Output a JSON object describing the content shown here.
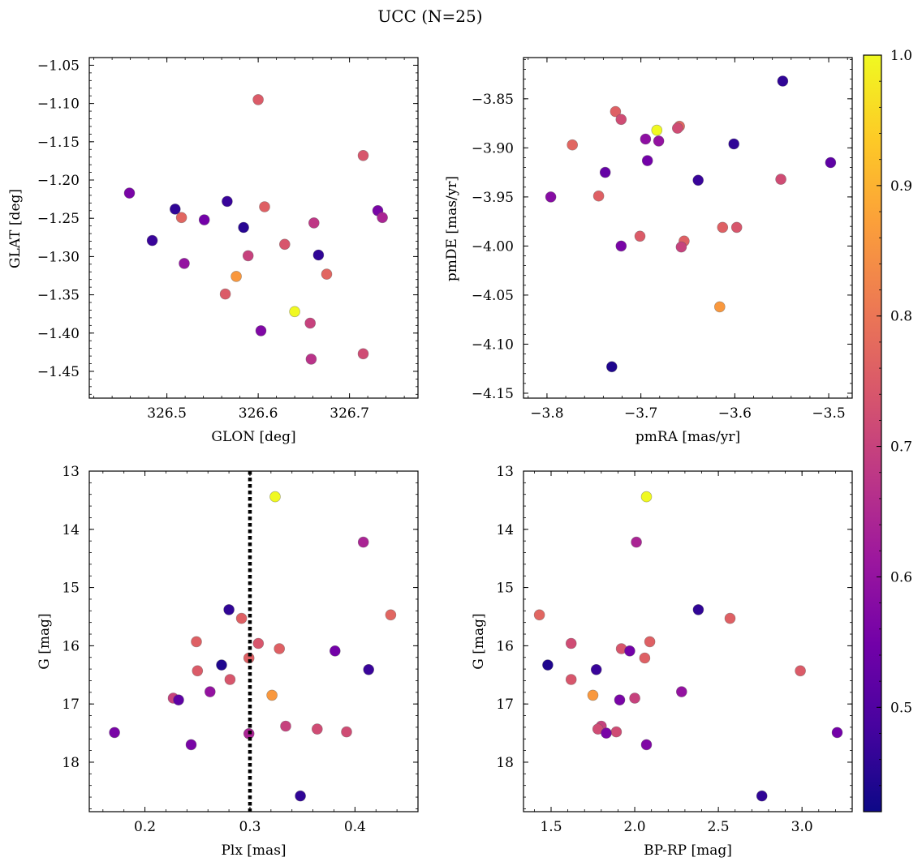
{
  "figure": {
    "title": "UCC (N=25)"
  },
  "colors": {
    "cmap": [
      "#0d0887",
      "#46039f",
      "#7201a8",
      "#9c179e",
      "#bd3786",
      "#d8576b",
      "#ed7953",
      "#fb9f3a",
      "#fdca26",
      "#f0f921"
    ],
    "threshold_line": "#000000"
  },
  "colorbar": {
    "min": 0.42,
    "max": 1.0,
    "ticks": [
      "0.5",
      "0.6",
      "0.7",
      "0.8",
      "0.9",
      "1.0"
    ],
    "tick_values": [
      0.5,
      0.6,
      0.7,
      0.8,
      0.9,
      1.0
    ]
  },
  "chart_data": [
    {
      "type": "scatter",
      "id": "lonlat",
      "xlabel": "GLON [deg]",
      "ylabel": "GLAT [deg]",
      "xlim": [
        326.415,
        326.775
      ],
      "ylim": [
        -1.485,
        -1.04
      ],
      "xticks": [
        326.5,
        326.6,
        326.7
      ],
      "xtick_labels": [
        "326.5",
        "326.6",
        "326.7"
      ],
      "yticks": [
        -1.05,
        -1.1,
        -1.15,
        -1.2,
        -1.25,
        -1.3,
        -1.35,
        -1.4,
        -1.45
      ],
      "ytick_labels": [
        "−1.05",
        "−1.10",
        "−1.15",
        "−1.20",
        "−1.25",
        "−1.30",
        "−1.35",
        "−1.40",
        "−1.45"
      ],
      "points": [
        {
          "x": 326.459,
          "y": -1.217,
          "c": 0.56
        },
        {
          "x": 326.484,
          "y": -1.279,
          "c": 0.47
        },
        {
          "x": 326.509,
          "y": -1.238,
          "c": 0.46
        },
        {
          "x": 326.516,
          "y": -1.249,
          "c": 0.77
        },
        {
          "x": 326.519,
          "y": -1.309,
          "c": 0.6
        },
        {
          "x": 326.541,
          "y": -1.252,
          "c": 0.55
        },
        {
          "x": 326.564,
          "y": -1.349,
          "c": 0.75
        },
        {
          "x": 326.566,
          "y": -1.228,
          "c": 0.47
        },
        {
          "x": 326.576,
          "y": -1.326,
          "c": 0.86
        },
        {
          "x": 326.584,
          "y": -1.262,
          "c": 0.45
        },
        {
          "x": 326.589,
          "y": -1.299,
          "c": 0.7
        },
        {
          "x": 326.6,
          "y": -1.095,
          "c": 0.75
        },
        {
          "x": 326.603,
          "y": -1.397,
          "c": 0.57
        },
        {
          "x": 326.607,
          "y": -1.235,
          "c": 0.76
        },
        {
          "x": 326.629,
          "y": -1.284,
          "c": 0.74
        },
        {
          "x": 326.64,
          "y": -1.372,
          "c": 1.0
        },
        {
          "x": 326.657,
          "y": -1.387,
          "c": 0.7
        },
        {
          "x": 326.658,
          "y": -1.434,
          "c": 0.67
        },
        {
          "x": 326.661,
          "y": -1.256,
          "c": 0.68
        },
        {
          "x": 326.666,
          "y": -1.298,
          "c": 0.46
        },
        {
          "x": 326.675,
          "y": -1.323,
          "c": 0.77
        },
        {
          "x": 326.715,
          "y": -1.168,
          "c": 0.74
        },
        {
          "x": 326.715,
          "y": -1.427,
          "c": 0.72
        },
        {
          "x": 326.731,
          "y": -1.24,
          "c": 0.56
        },
        {
          "x": 326.736,
          "y": -1.249,
          "c": 0.64
        }
      ]
    },
    {
      "type": "scatter",
      "id": "pm",
      "xlabel": "pmRA [mas/yr]",
      "ylabel": "pmDE [mas/yr]",
      "xlim": [
        -3.825,
        -3.475
      ],
      "ylim": [
        -4.155,
        -3.808
      ],
      "xticks": [
        -3.8,
        -3.7,
        -3.6,
        -3.5
      ],
      "xtick_labels": [
        "−3.8",
        "−3.7",
        "−3.6",
        "−3.5"
      ],
      "yticks": [
        -3.85,
        -3.9,
        -3.95,
        -4.0,
        -4.05,
        -4.1,
        -4.15
      ],
      "ytick_labels": [
        "−3.85",
        "−3.90",
        "−3.95",
        "−4.00",
        "−4.05",
        "−4.10",
        "−4.15"
      ],
      "points": [
        {
          "x": -3.549,
          "y": -3.832,
          "c": 0.46
        },
        {
          "x": -3.727,
          "y": -3.863,
          "c": 0.76
        },
        {
          "x": -3.721,
          "y": -3.871,
          "c": 0.72
        },
        {
          "x": -3.683,
          "y": -3.882,
          "c": 1.0
        },
        {
          "x": -3.659,
          "y": -3.878,
          "c": 0.77
        },
        {
          "x": -3.661,
          "y": -3.88,
          "c": 0.72
        },
        {
          "x": -3.695,
          "y": -3.891,
          "c": 0.59
        },
        {
          "x": -3.681,
          "y": -3.893,
          "c": 0.6
        },
        {
          "x": -3.773,
          "y": -3.897,
          "c": 0.77
        },
        {
          "x": -3.601,
          "y": -3.896,
          "c": 0.46
        },
        {
          "x": -3.693,
          "y": -3.913,
          "c": 0.55
        },
        {
          "x": -3.498,
          "y": -3.915,
          "c": 0.52
        },
        {
          "x": -3.738,
          "y": -3.925,
          "c": 0.53
        },
        {
          "x": -3.639,
          "y": -3.933,
          "c": 0.47
        },
        {
          "x": -3.551,
          "y": -3.932,
          "c": 0.72
        },
        {
          "x": -3.796,
          "y": -3.95,
          "c": 0.58
        },
        {
          "x": -3.745,
          "y": -3.949,
          "c": 0.76
        },
        {
          "x": -3.613,
          "y": -3.981,
          "c": 0.76
        },
        {
          "x": -3.598,
          "y": -3.981,
          "c": 0.74
        },
        {
          "x": -3.701,
          "y": -3.99,
          "c": 0.75
        },
        {
          "x": -3.654,
          "y": -3.995,
          "c": 0.76
        },
        {
          "x": -3.721,
          "y": -4.0,
          "c": 0.56
        },
        {
          "x": -3.657,
          "y": -4.001,
          "c": 0.7
        },
        {
          "x": -3.616,
          "y": -4.062,
          "c": 0.86
        },
        {
          "x": -3.731,
          "y": -4.123,
          "c": 0.44
        }
      ]
    },
    {
      "type": "scatter",
      "id": "plx",
      "xlabel": "Plx [mas]",
      "ylabel": "G [mag]",
      "xlim": [
        0.147,
        0.46
      ],
      "ylim": [
        18.85,
        13.0
      ],
      "y_inverted": true,
      "xticks": [
        0.2,
        0.3,
        0.4
      ],
      "xtick_labels": [
        "0.2",
        "0.3",
        "0.4"
      ],
      "yticks": [
        13,
        14,
        15,
        16,
        17,
        18
      ],
      "ytick_labels": [
        "13",
        "14",
        "15",
        "16",
        "17",
        "18"
      ],
      "vline": 0.3,
      "points": [
        {
          "x": 0.324,
          "y": 13.44,
          "c": 1.0
        },
        {
          "x": 0.408,
          "y": 14.22,
          "c": 0.64
        },
        {
          "x": 0.434,
          "y": 15.47,
          "c": 0.77
        },
        {
          "x": 0.28,
          "y": 15.38,
          "c": 0.46
        },
        {
          "x": 0.292,
          "y": 15.53,
          "c": 0.76
        },
        {
          "x": 0.249,
          "y": 15.93,
          "c": 0.76
        },
        {
          "x": 0.308,
          "y": 15.96,
          "c": 0.74
        },
        {
          "x": 0.328,
          "y": 16.05,
          "c": 0.76
        },
        {
          "x": 0.381,
          "y": 16.09,
          "c": 0.55
        },
        {
          "x": 0.299,
          "y": 16.21,
          "c": 0.76
        },
        {
          "x": 0.273,
          "y": 16.33,
          "c": 0.44
        },
        {
          "x": 0.413,
          "y": 16.41,
          "c": 0.47
        },
        {
          "x": 0.25,
          "y": 16.43,
          "c": 0.75
        },
        {
          "x": 0.281,
          "y": 16.58,
          "c": 0.74
        },
        {
          "x": 0.262,
          "y": 16.79,
          "c": 0.6
        },
        {
          "x": 0.321,
          "y": 16.85,
          "c": 0.86
        },
        {
          "x": 0.227,
          "y": 16.9,
          "c": 0.7
        },
        {
          "x": 0.232,
          "y": 16.93,
          "c": 0.52
        },
        {
          "x": 0.334,
          "y": 17.38,
          "c": 0.7
        },
        {
          "x": 0.364,
          "y": 17.43,
          "c": 0.72
        },
        {
          "x": 0.392,
          "y": 17.48,
          "c": 0.72
        },
        {
          "x": 0.171,
          "y": 17.49,
          "c": 0.56
        },
        {
          "x": 0.299,
          "y": 17.51,
          "c": 0.64
        },
        {
          "x": 0.244,
          "y": 17.7,
          "c": 0.56
        },
        {
          "x": 0.348,
          "y": 18.58,
          "c": 0.46
        }
      ]
    },
    {
      "type": "scatter",
      "id": "cmd",
      "xlabel": "BP-RP [mag]",
      "ylabel": "G [mag]",
      "xlim": [
        1.335,
        3.3
      ],
      "ylim": [
        18.85,
        13.0
      ],
      "y_inverted": true,
      "xticks": [
        1.5,
        2.0,
        2.5,
        3.0
      ],
      "xtick_labels": [
        "1.5",
        "2.0",
        "2.5",
        "3.0"
      ],
      "yticks": [
        13,
        14,
        15,
        16,
        17,
        18
      ],
      "ytick_labels": [
        "13",
        "14",
        "15",
        "16",
        "17",
        "18"
      ],
      "points": [
        {
          "x": 2.07,
          "y": 13.44,
          "c": 1.0
        },
        {
          "x": 2.01,
          "y": 14.22,
          "c": 0.64
        },
        {
          "x": 1.43,
          "y": 15.47,
          "c": 0.77
        },
        {
          "x": 2.38,
          "y": 15.38,
          "c": 0.46
        },
        {
          "x": 2.57,
          "y": 15.53,
          "c": 0.76
        },
        {
          "x": 1.62,
          "y": 15.96,
          "c": 0.72
        },
        {
          "x": 2.09,
          "y": 15.93,
          "c": 0.76
        },
        {
          "x": 1.92,
          "y": 16.05,
          "c": 0.74
        },
        {
          "x": 1.97,
          "y": 16.09,
          "c": 0.55
        },
        {
          "x": 2.06,
          "y": 16.21,
          "c": 0.76
        },
        {
          "x": 1.48,
          "y": 16.33,
          "c": 0.44
        },
        {
          "x": 1.77,
          "y": 16.41,
          "c": 0.47
        },
        {
          "x": 2.99,
          "y": 16.43,
          "c": 0.75
        },
        {
          "x": 1.62,
          "y": 16.58,
          "c": 0.74
        },
        {
          "x": 2.28,
          "y": 16.79,
          "c": 0.6
        },
        {
          "x": 1.75,
          "y": 16.85,
          "c": 0.86
        },
        {
          "x": 2.0,
          "y": 16.9,
          "c": 0.7
        },
        {
          "x": 1.91,
          "y": 16.93,
          "c": 0.56
        },
        {
          "x": 1.8,
          "y": 17.38,
          "c": 0.7
        },
        {
          "x": 1.78,
          "y": 17.43,
          "c": 0.72
        },
        {
          "x": 1.89,
          "y": 17.48,
          "c": 0.72
        },
        {
          "x": 1.83,
          "y": 17.5,
          "c": 0.56
        },
        {
          "x": 3.21,
          "y": 17.49,
          "c": 0.55
        },
        {
          "x": 2.07,
          "y": 17.7,
          "c": 0.57
        },
        {
          "x": 2.76,
          "y": 18.58,
          "c": 0.46
        }
      ]
    }
  ]
}
